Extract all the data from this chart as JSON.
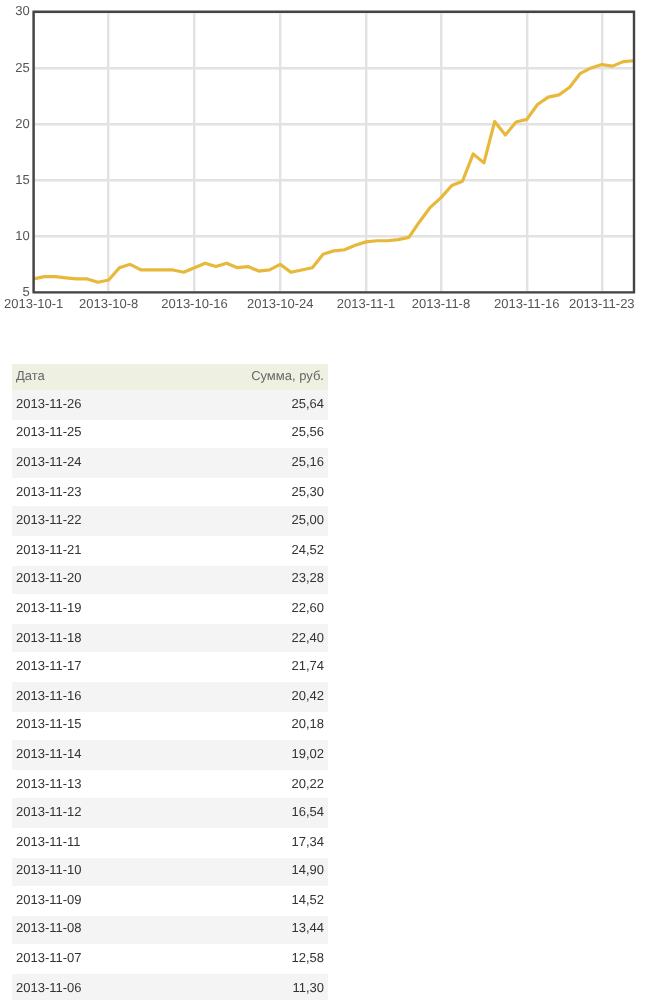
{
  "chart_data": [
    {
      "type": "line",
      "color": "#e8b83a",
      "x": [
        "2013-10-01",
        "2013-10-02",
        "2013-10-03",
        "2013-10-04",
        "2013-10-05",
        "2013-10-06",
        "2013-10-07",
        "2013-10-08",
        "2013-10-09",
        "2013-10-10",
        "2013-10-11",
        "2013-10-12",
        "2013-10-13",
        "2013-10-14",
        "2013-10-15",
        "2013-10-16",
        "2013-10-17",
        "2013-10-18",
        "2013-10-19",
        "2013-10-20",
        "2013-10-21",
        "2013-10-22",
        "2013-10-23",
        "2013-10-24",
        "2013-10-25",
        "2013-10-26",
        "2013-10-27",
        "2013-10-28",
        "2013-10-29",
        "2013-10-30",
        "2013-10-31",
        "2013-11-01",
        "2013-11-02",
        "2013-11-03",
        "2013-11-04",
        "2013-11-05",
        "2013-11-06",
        "2013-11-07",
        "2013-11-08",
        "2013-11-09",
        "2013-11-10",
        "2013-11-11",
        "2013-11-12",
        "2013-11-13",
        "2013-11-14",
        "2013-11-15",
        "2013-11-16",
        "2013-11-17",
        "2013-11-18",
        "2013-11-19",
        "2013-11-20",
        "2013-11-21",
        "2013-11-22",
        "2013-11-23",
        "2013-11-24",
        "2013-11-25",
        "2013-11-26"
      ],
      "values": [
        6.2,
        6.4,
        6.4,
        6.3,
        6.2,
        6.2,
        5.9,
        6.1,
        7.2,
        7.5,
        7.0,
        7.0,
        7.0,
        7.0,
        6.8,
        7.2,
        7.6,
        7.3,
        7.6,
        7.2,
        7.3,
        6.9,
        7.0,
        7.5,
        6.8,
        7.0,
        7.2,
        8.4,
        8.7,
        8.8,
        9.2,
        9.5,
        9.6,
        9.6,
        9.7,
        9.9,
        11.3,
        12.58,
        13.44,
        14.52,
        14.9,
        17.34,
        16.54,
        20.22,
        19.02,
        20.18,
        20.42,
        21.74,
        22.4,
        22.6,
        23.28,
        24.52,
        25.0,
        25.3,
        25.16,
        25.56,
        25.64
      ],
      "xlim": [
        "2013-10-01",
        "2013-11-26"
      ],
      "xticks": [
        {
          "value": "2013-10-01",
          "label": "2013-10-1"
        },
        {
          "value": "2013-10-08",
          "label": "2013-10-8"
        },
        {
          "value": "2013-10-16",
          "label": "2013-10-16"
        },
        {
          "value": "2013-10-24",
          "label": "2013-10-24"
        },
        {
          "value": "2013-11-01",
          "label": "2013-11-1"
        },
        {
          "value": "2013-11-08",
          "label": "2013-11-8"
        },
        {
          "value": "2013-11-16",
          "label": "2013-11-16"
        },
        {
          "value": "2013-11-23",
          "label": "2013-11-23"
        }
      ],
      "ylim": [
        5,
        30
      ],
      "yticks": [
        5,
        10,
        15,
        20,
        25,
        30
      ],
      "grid": true,
      "marker": "none",
      "line_style": "solid"
    },
    {
      "type": "other",
      "xlabel": "Дата",
      "ylabel": "Сумма, руб.",
      "categories": [
        "2013-11-26",
        "2013-11-25",
        "2013-11-24",
        "2013-11-23",
        "2013-11-22",
        "2013-11-21",
        "2013-11-20",
        "2013-11-19",
        "2013-11-18",
        "2013-11-17",
        "2013-11-16",
        "2013-11-15",
        "2013-11-14",
        "2013-11-13",
        "2013-11-12",
        "2013-11-11",
        "2013-11-10",
        "2013-11-09",
        "2013-11-08",
        "2013-11-07",
        "2013-11-06"
      ],
      "value_labels": [
        "25,64",
        "25,56",
        "25,16",
        "25,30",
        "25,00",
        "24,52",
        "23,28",
        "22,60",
        "22,40",
        "21,74",
        "20,42",
        "20,18",
        "19,02",
        "20,22",
        "16,54",
        "17,34",
        "14,90",
        "14,52",
        "13,44",
        "12,58",
        "11,30"
      ]
    }
  ]
}
